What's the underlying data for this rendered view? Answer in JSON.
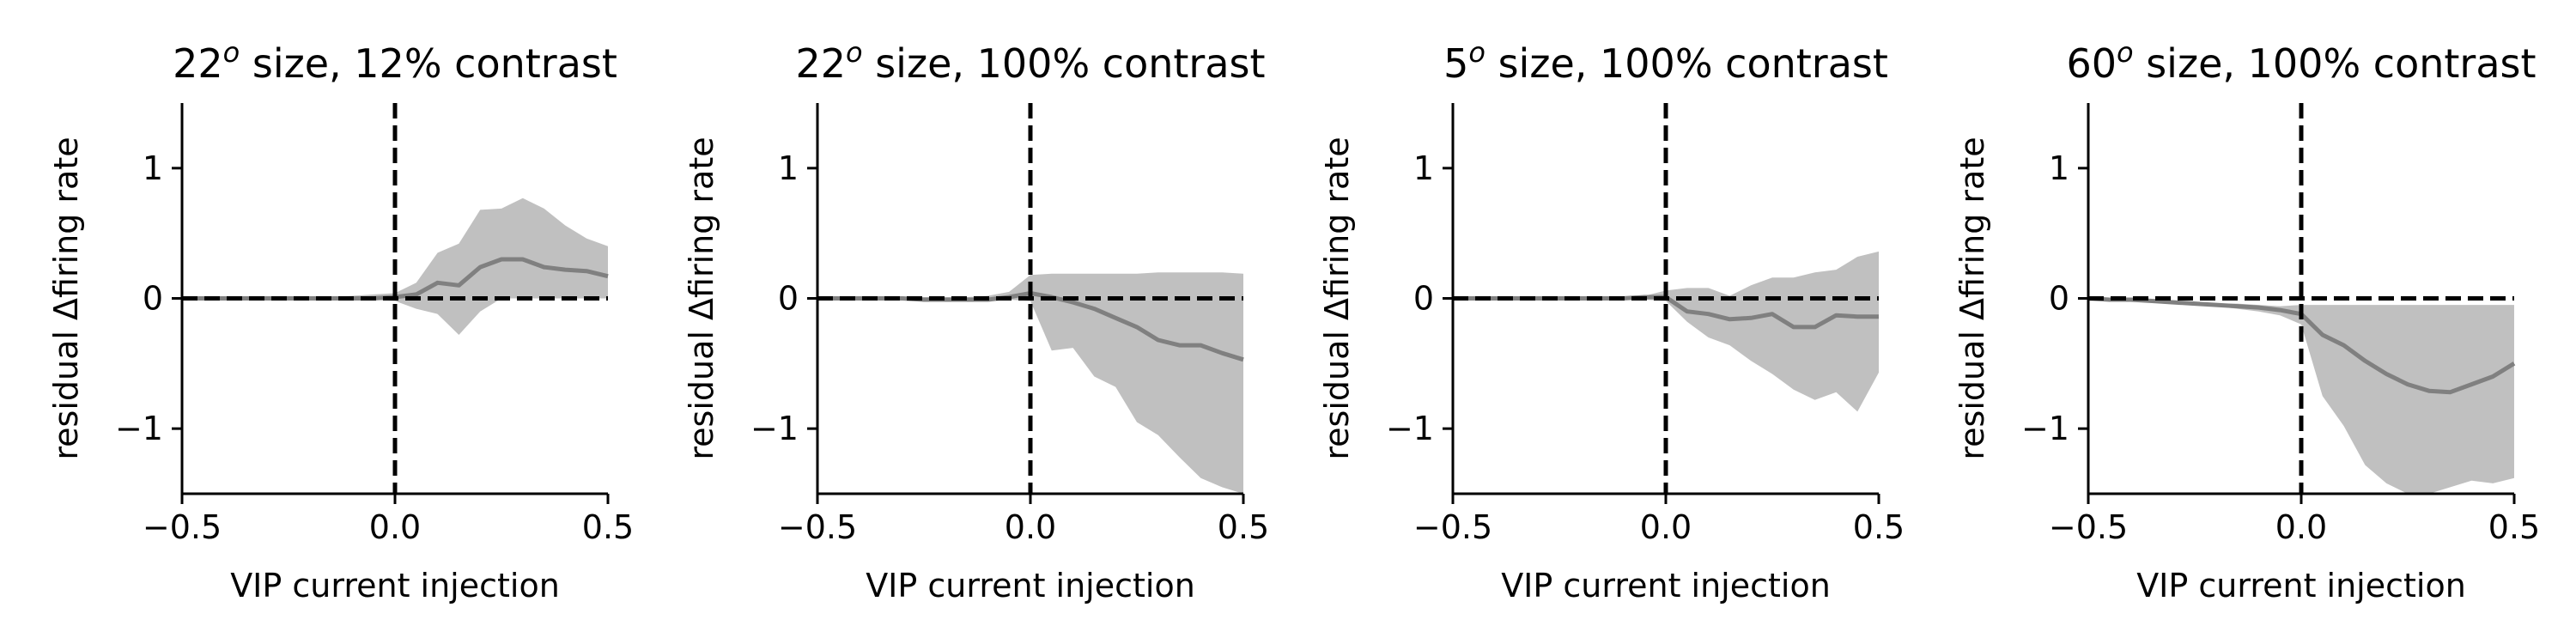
{
  "chart_data": [
    {
      "type": "line",
      "title": "22° size, 12% contrast",
      "title_parts": [
        "22",
        "o",
        " size, 12% contrast"
      ],
      "xlabel": "VIP current injection",
      "ylabel": "residual Δfiring rate",
      "xlim": [
        -0.5,
        0.5
      ],
      "ylim": [
        -1.5,
        1.5
      ],
      "xticks": [
        -0.5,
        0.0,
        0.5
      ],
      "xtick_labels": [
        "−0.5",
        "0.0",
        "0.5"
      ],
      "yticks": [
        -1,
        0,
        1
      ],
      "ytick_labels": [
        "−1",
        "0",
        "1"
      ],
      "reference_lines": {
        "x": 0,
        "y": 0
      },
      "grid": false,
      "colors": {
        "line": "#808080",
        "band": "#c0c0c0",
        "reference": "#000000"
      },
      "series": [
        {
          "x": [
            -0.5,
            -0.45,
            -0.4,
            -0.35,
            -0.3,
            -0.25,
            -0.2,
            -0.15,
            -0.1,
            -0.05,
            0.0,
            0.05,
            0.1,
            0.15,
            0.2,
            0.25,
            0.3,
            0.35,
            0.4,
            0.45,
            0.5
          ],
          "mean": [
            0,
            0,
            0,
            0,
            0,
            0,
            0,
            0,
            0,
            0,
            0.01,
            0.03,
            0.12,
            0.1,
            0.24,
            0.3,
            0.3,
            0.24,
            0.22,
            0.21,
            0.17
          ],
          "lower": [
            0,
            0,
            0,
            0,
            -0.01,
            -0.01,
            -0.01,
            -0.01,
            -0.01,
            -0.01,
            -0.02,
            -0.08,
            -0.12,
            -0.28,
            -0.1,
            0,
            0,
            0,
            0,
            0,
            0
          ],
          "upper": [
            0,
            0,
            0,
            0,
            0.01,
            0.01,
            0.01,
            0.01,
            0.02,
            0.03,
            0.04,
            0.12,
            0.35,
            0.42,
            0.68,
            0.69,
            0.77,
            0.69,
            0.56,
            0.46,
            0.4
          ]
        }
      ]
    },
    {
      "type": "line",
      "title": "22° size, 100% contrast",
      "title_parts": [
        "22",
        "o",
        " size, 100% contrast"
      ],
      "xlabel": "VIP current injection",
      "ylabel": "residual Δfiring rate",
      "xlim": [
        -0.5,
        0.5
      ],
      "ylim": [
        -1.5,
        1.5
      ],
      "xticks": [
        -0.5,
        0.0,
        0.5
      ],
      "xtick_labels": [
        "−0.5",
        "0.0",
        "0.5"
      ],
      "yticks": [
        -1,
        0,
        1
      ],
      "ytick_labels": [
        "−1",
        "0",
        "1"
      ],
      "reference_lines": {
        "x": 0,
        "y": 0
      },
      "grid": false,
      "colors": {
        "line": "#808080",
        "band": "#c0c0c0",
        "reference": "#000000"
      },
      "series": [
        {
          "x": [
            -0.5,
            -0.45,
            -0.4,
            -0.35,
            -0.3,
            -0.25,
            -0.2,
            -0.15,
            -0.1,
            -0.05,
            0.0,
            0.05,
            0.1,
            0.15,
            0.2,
            0.25,
            0.3,
            0.35,
            0.4,
            0.45,
            0.5
          ],
          "mean": [
            0,
            0,
            0,
            0,
            0,
            -0.01,
            -0.01,
            -0.01,
            -0.01,
            0.01,
            0.04,
            0.01,
            -0.03,
            -0.08,
            -0.15,
            -0.22,
            -0.32,
            -0.36,
            -0.36,
            -0.42,
            -0.47
          ],
          "lower": [
            0,
            0,
            0,
            0,
            -0.01,
            -0.01,
            -0.01,
            -0.01,
            -0.01,
            -0.01,
            -0.02,
            -0.4,
            -0.38,
            -0.6,
            -0.68,
            -0.95,
            -1.05,
            -1.22,
            -1.38,
            -1.45,
            -1.5
          ],
          "upper": [
            0,
            0,
            0,
            0,
            0.01,
            0.01,
            0.01,
            0.01,
            0.02,
            0.05,
            0.18,
            0.19,
            0.19,
            0.19,
            0.19,
            0.19,
            0.2,
            0.2,
            0.2,
            0.2,
            0.19
          ]
        }
      ]
    },
    {
      "type": "line",
      "title": "5° size, 100% contrast",
      "title_parts": [
        "5",
        "o",
        " size, 100% contrast"
      ],
      "xlabel": "VIP current injection",
      "ylabel": "residual Δfiring rate",
      "xlim": [
        -0.5,
        0.5
      ],
      "ylim": [
        -1.5,
        1.5
      ],
      "xticks": [
        -0.5,
        0.0,
        0.5
      ],
      "xtick_labels": [
        "−0.5",
        "0.0",
        "0.5"
      ],
      "yticks": [
        -1,
        0,
        1
      ],
      "ytick_labels": [
        "−1",
        "0",
        "1"
      ],
      "reference_lines": {
        "x": 0,
        "y": 0
      },
      "grid": false,
      "colors": {
        "line": "#808080",
        "band": "#c0c0c0",
        "reference": "#000000"
      },
      "series": [
        {
          "x": [
            -0.5,
            -0.45,
            -0.4,
            -0.35,
            -0.3,
            -0.25,
            -0.2,
            -0.15,
            -0.1,
            -0.05,
            0.0,
            0.05,
            0.1,
            0.15,
            0.2,
            0.25,
            0.3,
            0.35,
            0.4,
            0.45,
            0.5
          ],
          "mean": [
            0,
            0,
            0,
            0,
            0,
            0,
            0,
            0,
            0,
            0.01,
            0.01,
            -0.1,
            -0.12,
            -0.16,
            -0.15,
            -0.12,
            -0.22,
            -0.22,
            -0.13,
            -0.14,
            -0.14
          ],
          "lower": [
            0,
            0,
            0,
            0,
            -0.01,
            -0.01,
            -0.01,
            -0.01,
            -0.01,
            -0.01,
            -0.02,
            -0.18,
            -0.3,
            -0.36,
            -0.48,
            -0.58,
            -0.7,
            -0.78,
            -0.72,
            -0.87,
            -0.57
          ],
          "upper": [
            0,
            0,
            0,
            0,
            0.01,
            0.01,
            0.01,
            0.01,
            0.01,
            0.02,
            0.06,
            0.08,
            0.08,
            0.02,
            0.1,
            0.16,
            0.16,
            0.2,
            0.22,
            0.32,
            0.36
          ]
        }
      ]
    },
    {
      "type": "line",
      "title": "60° size, 100% contrast",
      "title_parts": [
        "60",
        "o",
        " size, 100% contrast"
      ],
      "xlabel": "VIP current injection",
      "ylabel": "residual Δfiring rate",
      "xlim": [
        -0.5,
        0.5
      ],
      "ylim": [
        -1.5,
        1.5
      ],
      "xticks": [
        -0.5,
        0.0,
        0.5
      ],
      "xtick_labels": [
        "−0.5",
        "0.0",
        "0.5"
      ],
      "yticks": [
        -1,
        0,
        1
      ],
      "ytick_labels": [
        "−1",
        "0",
        "1"
      ],
      "reference_lines": {
        "x": 0,
        "y": 0
      },
      "grid": false,
      "colors": {
        "line": "#808080",
        "band": "#c0c0c0",
        "reference": "#000000"
      },
      "series": [
        {
          "x": [
            -0.5,
            -0.45,
            -0.4,
            -0.35,
            -0.3,
            -0.25,
            -0.2,
            -0.15,
            -0.1,
            -0.05,
            0.0,
            0.05,
            0.1,
            0.15,
            0.2,
            0.25,
            0.3,
            0.35,
            0.4,
            0.45,
            0.5
          ],
          "mean": [
            0,
            -0.01,
            -0.01,
            -0.02,
            -0.03,
            -0.04,
            -0.05,
            -0.06,
            -0.07,
            -0.09,
            -0.12,
            -0.28,
            -0.36,
            -0.48,
            -0.58,
            -0.66,
            -0.71,
            -0.72,
            -0.66,
            -0.6,
            -0.5
          ],
          "lower": [
            -0.01,
            -0.02,
            -0.02,
            -0.03,
            -0.04,
            -0.05,
            -0.06,
            -0.08,
            -0.1,
            -0.13,
            -0.2,
            -0.75,
            -0.98,
            -1.28,
            -1.42,
            -1.5,
            -1.5,
            -1.45,
            -1.4,
            -1.42,
            -1.38
          ],
          "upper": [
            0.01,
            0,
            0,
            -0.01,
            -0.02,
            -0.03,
            -0.04,
            -0.04,
            -0.05,
            -0.06,
            -0.05,
            -0.05,
            -0.05,
            -0.05,
            -0.05,
            -0.05,
            -0.05,
            -0.05,
            -0.05,
            -0.05,
            -0.05
          ]
        }
      ]
    }
  ]
}
